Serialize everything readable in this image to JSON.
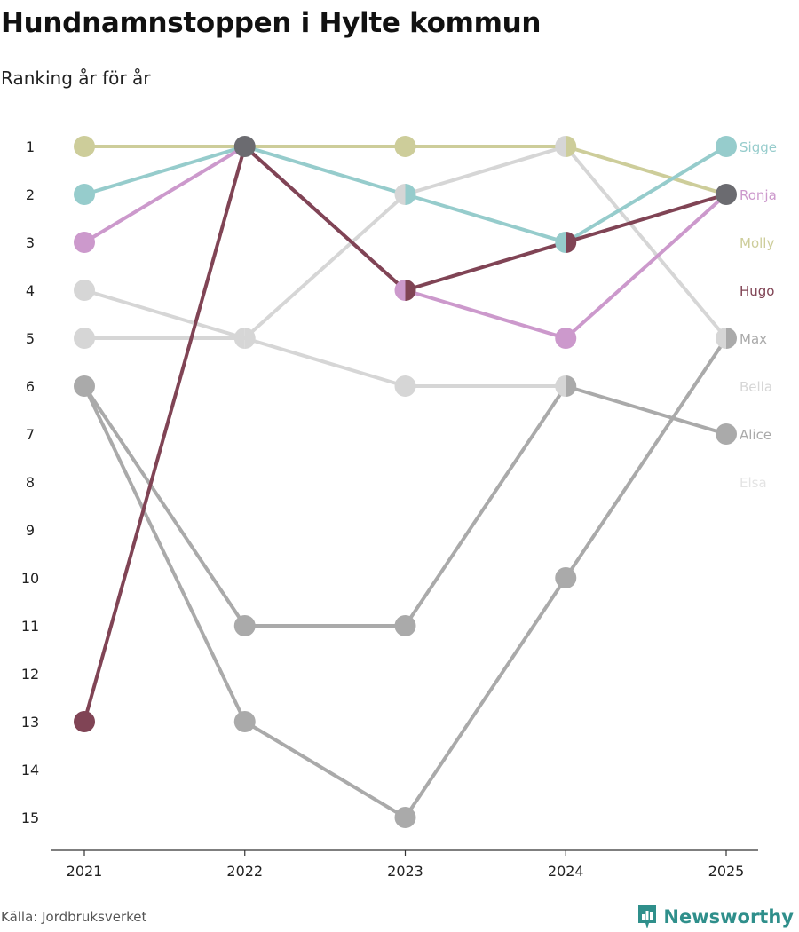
{
  "title": "Hundnamnstoppen i Hylte kommun",
  "subtitle": "Ranking år för år",
  "source": "Källa: Jordbruksverket",
  "brand": "Newsworthy",
  "chart_data": {
    "type": "line",
    "chart_kind": "bump",
    "x": [
      "2021",
      "2022",
      "2023",
      "2024",
      "2025"
    ],
    "y_ticks": [
      1,
      2,
      3,
      4,
      5,
      6,
      7,
      8,
      9,
      10,
      11,
      12,
      13,
      14,
      15
    ],
    "ylim": [
      1,
      15
    ],
    "y_inverted": true,
    "series": [
      {
        "name": "Bella",
        "color": "#d6d6d6",
        "values": [
          4,
          5,
          6,
          6,
          null
        ]
      },
      {
        "name": "Elsa",
        "color": "#d6d6d6",
        "values": [
          5,
          5,
          2,
          1,
          5
        ]
      },
      {
        "name": "Alice",
        "color": "#aaaaaa",
        "values": [
          6,
          11,
          11,
          6,
          7
        ]
      },
      {
        "name": "Max",
        "color": "#aaaaaa",
        "values": [
          6,
          13,
          15,
          10,
          5
        ]
      },
      {
        "name": "Molly",
        "color": "#cdcd9a",
        "values": [
          1,
          1,
          1,
          1,
          2
        ]
      },
      {
        "name": "Sigge",
        "color": "#96cccc",
        "values": [
          2,
          1,
          2,
          3,
          1
        ]
      },
      {
        "name": "Ronja",
        "color": "#cc99cc",
        "values": [
          3,
          1,
          4,
          5,
          2
        ]
      },
      {
        "name": "Hugo",
        "color": "#804455",
        "values": [
          13,
          1,
          4,
          3,
          2
        ]
      }
    ],
    "end_labels": [
      {
        "name": "Sigge",
        "color": "#96cccc",
        "rank": 1
      },
      {
        "name": "Ronja",
        "color": "#cc99cc",
        "rank": 2
      },
      {
        "name": "Molly",
        "color": "#cdcd9a",
        "rank": 3
      },
      {
        "name": "Hugo",
        "color": "#804455",
        "rank": 4
      },
      {
        "name": "Max",
        "color": "#aaaaaa",
        "rank": 5
      },
      {
        "name": "Bella",
        "color": "#d6d6d6",
        "rank": 6
      },
      {
        "name": "Alice",
        "color": "#aaaaaa",
        "rank": 7
      },
      {
        "name": "Elsa",
        "color": "#e4e4e4",
        "rank": 8
      }
    ],
    "overlap_color": "#6b6b70"
  }
}
